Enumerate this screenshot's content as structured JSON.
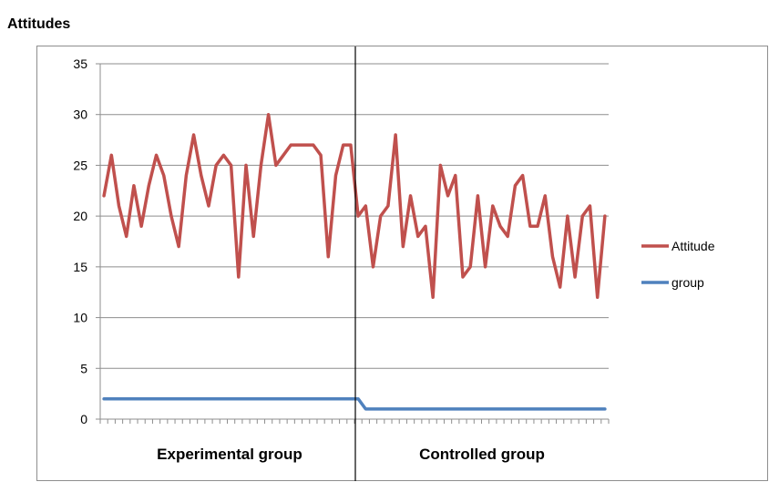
{
  "chart_title": "Attitudes",
  "chart_data": {
    "type": "line",
    "title": "Attitudes",
    "xlabel": "",
    "ylabel": "",
    "ylim": [
      0,
      35
    ],
    "yticks": [
      "0",
      "5",
      "10",
      "15",
      "20",
      "25",
      "30",
      "35"
    ],
    "grid": true,
    "legend": "right",
    "group_labels": [
      "Experimental group",
      "Controlled group"
    ],
    "divider_after_index": 34,
    "series": [
      {
        "name": "Attitude",
        "color": "#C0504D",
        "values": [
          22,
          26,
          21,
          18,
          23,
          19,
          23,
          26,
          24,
          20,
          17,
          24,
          28,
          24,
          21,
          25,
          26,
          25,
          14,
          25,
          18,
          25,
          30,
          25,
          26,
          27,
          27,
          27,
          27,
          26,
          16,
          24,
          27,
          27,
          20,
          21,
          15,
          20,
          21,
          28,
          17,
          22,
          18,
          19,
          12,
          25,
          22,
          24,
          14,
          15,
          22,
          15,
          21,
          19,
          18,
          23,
          24,
          19,
          19,
          22,
          16,
          13,
          20,
          14,
          20,
          21,
          12,
          20
        ]
      },
      {
        "name": "group",
        "color": "#4F81BD",
        "values": [
          2,
          2,
          2,
          2,
          2,
          2,
          2,
          2,
          2,
          2,
          2,
          2,
          2,
          2,
          2,
          2,
          2,
          2,
          2,
          2,
          2,
          2,
          2,
          2,
          2,
          2,
          2,
          2,
          2,
          2,
          2,
          2,
          2,
          2,
          2,
          1,
          1,
          1,
          1,
          1,
          1,
          1,
          1,
          1,
          1,
          1,
          1,
          1,
          1,
          1,
          1,
          1,
          1,
          1,
          1,
          1,
          1,
          1,
          1,
          1,
          1,
          1,
          1,
          1,
          1,
          1,
          1,
          1
        ]
      }
    ]
  }
}
